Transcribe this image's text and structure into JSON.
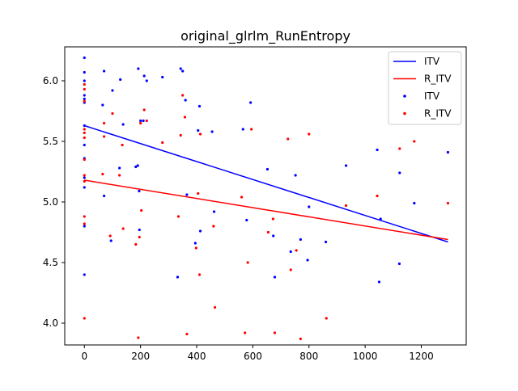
{
  "chart_data": {
    "type": "scatter",
    "title": "original_glrlm_RunEntropy",
    "xlabel": "",
    "ylabel": "",
    "xlim": [
      -70,
      1360
    ],
    "ylim": [
      3.82,
      6.28
    ],
    "x_ticks": [
      0,
      200,
      400,
      600,
      800,
      1000,
      1200
    ],
    "x_tick_labels": [
      "0",
      "200",
      "400",
      "600",
      "800",
      "1000",
      "1200"
    ],
    "y_ticks": [
      4.0,
      4.5,
      5.0,
      5.5,
      6.0
    ],
    "y_tick_labels": [
      "4.0",
      "4.5",
      "5.0",
      "5.5",
      "6.0"
    ],
    "grid": false,
    "legend_position": "top-right",
    "colors": {
      "itv": "#0000ff",
      "r_itv": "#ff0000",
      "axis": "#000000",
      "background": "#ffffff"
    },
    "legend": [
      {
        "label": "ITV",
        "kind": "line",
        "color": "#0000ff"
      },
      {
        "label": "R_ITV",
        "kind": "line",
        "color": "#ff0000"
      },
      {
        "label": "ITV",
        "kind": "marker",
        "color": "#0000ff"
      },
      {
        "label": "R_ITV",
        "kind": "marker",
        "color": "#ff0000"
      }
    ],
    "lines": [
      {
        "name": "ITV",
        "color": "#0000ff",
        "x": [
          0,
          1295
        ],
        "y": [
          5.63,
          4.67
        ]
      },
      {
        "name": "R_ITV",
        "color": "#ff0000",
        "x": [
          0,
          1295
        ],
        "y": [
          5.18,
          4.69
        ]
      }
    ],
    "series": [
      {
        "name": "ITV",
        "color": "#0000ff",
        "points": [
          [
            0,
            6.19
          ],
          [
            0,
            6.07
          ],
          [
            0,
            6.0
          ],
          [
            0,
            5.88
          ],
          [
            0,
            5.85
          ],
          [
            0,
            5.82
          ],
          [
            0,
            5.63
          ],
          [
            0,
            5.47
          ],
          [
            0,
            5.36
          ],
          [
            0,
            5.2
          ],
          [
            0,
            5.12
          ],
          [
            0,
            4.8
          ],
          [
            0,
            4.4
          ],
          [
            65,
            5.8
          ],
          [
            70,
            6.08
          ],
          [
            70,
            5.05
          ],
          [
            95,
            4.68
          ],
          [
            100,
            5.92
          ],
          [
            125,
            5.28
          ],
          [
            128,
            6.01
          ],
          [
            138,
            5.64
          ],
          [
            183,
            5.29
          ],
          [
            190,
            5.3
          ],
          [
            192,
            6.1
          ],
          [
            195,
            5.09
          ],
          [
            196,
            4.77
          ],
          [
            200,
            5.67
          ],
          [
            210,
            5.67
          ],
          [
            213,
            6.04
          ],
          [
            222,
            6.0
          ],
          [
            278,
            6.03
          ],
          [
            332,
            4.38
          ],
          [
            343,
            6.1
          ],
          [
            350,
            6.08
          ],
          [
            360,
            5.84
          ],
          [
            365,
            5.06
          ],
          [
            395,
            4.66
          ],
          [
            405,
            5.59
          ],
          [
            410,
            5.79
          ],
          [
            413,
            4.76
          ],
          [
            455,
            5.58
          ],
          [
            462,
            4.92
          ],
          [
            565,
            5.6
          ],
          [
            578,
            4.85
          ],
          [
            592,
            5.82
          ],
          [
            652,
            5.27
          ],
          [
            673,
            4.72
          ],
          [
            678,
            4.38
          ],
          [
            735,
            4.59
          ],
          [
            752,
            5.22
          ],
          [
            770,
            4.69
          ],
          [
            795,
            4.52
          ],
          [
            800,
            4.96
          ],
          [
            860,
            4.67
          ],
          [
            932,
            5.3
          ],
          [
            1043,
            5.43
          ],
          [
            1050,
            4.34
          ],
          [
            1055,
            4.86
          ],
          [
            1122,
            4.49
          ],
          [
            1123,
            5.24
          ],
          [
            1175,
            4.99
          ],
          [
            1295,
            5.41
          ]
        ]
      },
      {
        "name": "R_ITV",
        "color": "#ff0000",
        "points": [
          [
            0,
            5.97
          ],
          [
            0,
            5.93
          ],
          [
            0,
            5.83
          ],
          [
            0,
            5.6
          ],
          [
            0,
            5.57
          ],
          [
            0,
            5.53
          ],
          [
            0,
            5.35
          ],
          [
            0,
            5.22
          ],
          [
            0,
            5.17
          ],
          [
            0,
            4.88
          ],
          [
            0,
            4.82
          ],
          [
            0,
            4.04
          ],
          [
            65,
            5.23
          ],
          [
            70,
            5.65
          ],
          [
            70,
            5.54
          ],
          [
            92,
            4.72
          ],
          [
            100,
            5.73
          ],
          [
            125,
            5.22
          ],
          [
            135,
            5.47
          ],
          [
            138,
            4.78
          ],
          [
            183,
            4.65
          ],
          [
            192,
            3.88
          ],
          [
            196,
            4.71
          ],
          [
            200,
            5.65
          ],
          [
            203,
            4.93
          ],
          [
            213,
            5.76
          ],
          [
            222,
            5.67
          ],
          [
            278,
            5.49
          ],
          [
            335,
            4.88
          ],
          [
            343,
            5.55
          ],
          [
            350,
            5.88
          ],
          [
            358,
            5.7
          ],
          [
            365,
            3.91
          ],
          [
            398,
            4.62
          ],
          [
            405,
            5.07
          ],
          [
            410,
            4.4
          ],
          [
            413,
            5.56
          ],
          [
            460,
            4.8
          ],
          [
            465,
            4.13
          ],
          [
            560,
            5.04
          ],
          [
            572,
            3.92
          ],
          [
            582,
            4.5
          ],
          [
            595,
            5.6
          ],
          [
            655,
            4.75
          ],
          [
            672,
            4.86
          ],
          [
            678,
            3.92
          ],
          [
            725,
            5.52
          ],
          [
            735,
            4.44
          ],
          [
            755,
            4.6
          ],
          [
            770,
            3.87
          ],
          [
            800,
            5.56
          ],
          [
            862,
            4.04
          ],
          [
            932,
            4.97
          ],
          [
            1043,
            5.05
          ],
          [
            1123,
            5.44
          ],
          [
            1175,
            5.5
          ],
          [
            1295,
            4.99
          ]
        ]
      }
    ]
  }
}
